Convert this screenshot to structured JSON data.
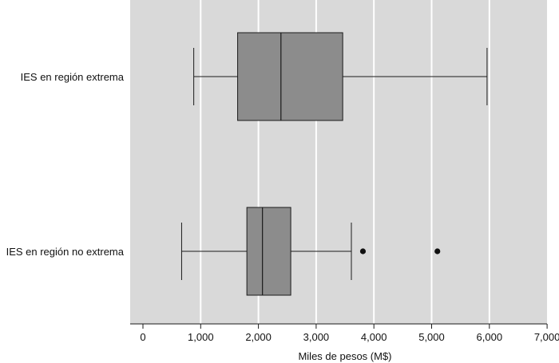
{
  "chart_data": {
    "type": "boxplot",
    "orientation": "horizontal",
    "title": "",
    "xlabel": "Miles de pesos (M$)",
    "ylabel": "",
    "xlim": [
      0,
      7000
    ],
    "xticks": [
      0,
      1000,
      2000,
      3000,
      4000,
      5000,
      6000,
      7000
    ],
    "xtick_labels": [
      "0",
      "1,000",
      "2,000",
      "3,000",
      "4,000",
      "5,000",
      "6,000",
      "7,000"
    ],
    "grid": true,
    "categories": [
      "IES en región extrema",
      "IES en región no extrema"
    ],
    "boxes": [
      {
        "category": "IES en región extrema",
        "whisker_low": 880,
        "q1": 1640,
        "median": 2390,
        "q3": 3460,
        "whisker_high": 5960,
        "outliers": []
      },
      {
        "category": "IES en región no extrema",
        "whisker_low": 670,
        "q1": 1800,
        "median": 2070,
        "q3": 2560,
        "whisker_high": 3610,
        "outliers": [
          3810,
          5100
        ]
      }
    ]
  },
  "colors": {
    "plot_background": "#d9d9d9",
    "box_fill": "#8c8c8c",
    "grid": "#ffffff",
    "stroke": "#1a1a1a"
  }
}
